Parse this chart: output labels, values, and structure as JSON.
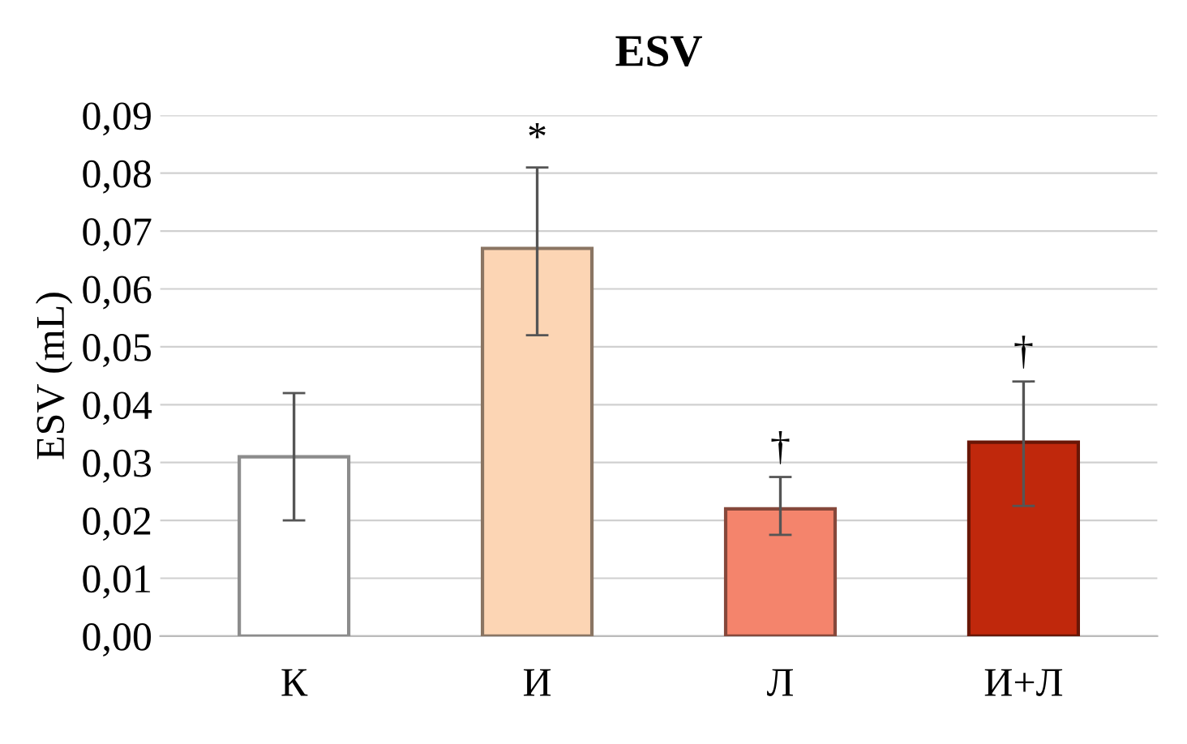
{
  "chart_data": {
    "type": "bar",
    "title": "ESV",
    "ylabel": "ESV (mL)",
    "categories": [
      "К",
      "И",
      "Л",
      "И+Л"
    ],
    "values": [
      0.031,
      0.067,
      0.022,
      0.0335
    ],
    "colors": [
      "#ffffff",
      "#fcd5b4",
      "#f4846c",
      "#c0280c"
    ],
    "errors": [
      [
        0.02,
        0.042
      ],
      [
        0.052,
        0.081
      ],
      [
        0.0175,
        0.0275
      ],
      [
        0.0225,
        0.044
      ]
    ],
    "annotations": [
      {
        "text": "*",
        "x": "И",
        "y": 0.081
      },
      {
        "text": "†",
        "x": "Л",
        "y": 0.0275
      },
      {
        "text": "†",
        "x": "И+Л",
        "y": 0.044
      }
    ],
    "ylim": [
      0,
      0.09
    ],
    "yticks": [
      {
        "value": 0,
        "label": "0,00"
      },
      {
        "value": 0.01,
        "label": "0,01"
      },
      {
        "value": 0.02,
        "label": "0,02"
      },
      {
        "value": 0.03,
        "label": "0,03"
      },
      {
        "value": 0.04,
        "label": "0,04"
      },
      {
        "value": 0.05,
        "label": "0,05"
      },
      {
        "value": 0.06,
        "label": "0,06"
      },
      {
        "value": 0.07,
        "label": "0,07"
      },
      {
        "value": 0.08,
        "label": "0,08"
      },
      {
        "value": 0.09,
        "label": "0,09"
      }
    ],
    "grid": "y",
    "legend": false
  }
}
